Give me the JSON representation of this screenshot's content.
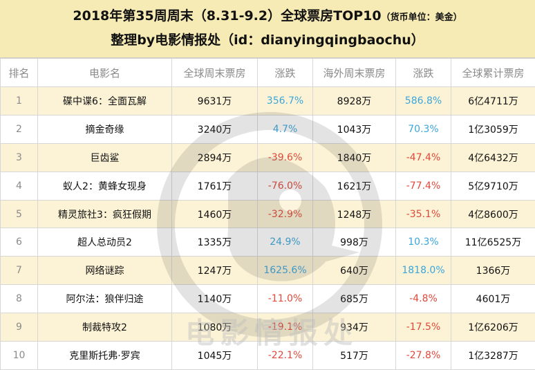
{
  "header": {
    "title": "2018年第35周周末（8.31-9.2）全球票房TOP10",
    "unit": "（货币单位：美金）",
    "subtitle": "整理by电影情报处（id：dianyingqingbaochu）"
  },
  "watermark": {
    "text": "电影情报处"
  },
  "table": {
    "headers": [
      "排名",
      "电影名",
      "全球周末票房",
      "涨跌",
      "海外周末票房",
      "涨跌",
      "全球累计票房"
    ],
    "rows": [
      {
        "rank": "1",
        "name": "碟中谍6：全面瓦解",
        "gross": "9631万",
        "change": "356.7%",
        "change_dir": "up",
        "overseas": "8928万",
        "os_change": "586.8%",
        "os_change_dir": "up",
        "total": "6亿4711万"
      },
      {
        "rank": "2",
        "name": "摘金奇缘",
        "gross": "3240万",
        "change": "4.7%",
        "change_dir": "up",
        "overseas": "1043万",
        "os_change": "70.3%",
        "os_change_dir": "up",
        "total": "1亿3059万"
      },
      {
        "rank": "3",
        "name": "巨齿鲨",
        "gross": "2894万",
        "change": "-39.6%",
        "change_dir": "down",
        "overseas": "1840万",
        "os_change": "-47.4%",
        "os_change_dir": "down",
        "total": "4亿6432万"
      },
      {
        "rank": "4",
        "name": "蚁人2：黄蜂女现身",
        "gross": "1761万",
        "change": "-76.0%",
        "change_dir": "down",
        "overseas": "1621万",
        "os_change": "-77.4%",
        "os_change_dir": "down",
        "total": "5亿9710万"
      },
      {
        "rank": "5",
        "name": "精灵旅社3：疯狂假期",
        "gross": "1460万",
        "change": "-32.9%",
        "change_dir": "down",
        "overseas": "1248万",
        "os_change": "-35.1%",
        "os_change_dir": "down",
        "total": "4亿8600万"
      },
      {
        "rank": "6",
        "name": "超人总动员2",
        "gross": "1335万",
        "change": "24.9%",
        "change_dir": "up",
        "overseas": "998万",
        "os_change": "10.3%",
        "os_change_dir": "up",
        "total": "11亿6525万"
      },
      {
        "rank": "7",
        "name": "网络谜踪",
        "gross": "1247万",
        "change": "1625.6%",
        "change_dir": "up",
        "overseas": "640万",
        "os_change": "1818.0%",
        "os_change_dir": "up",
        "total": "1366万"
      },
      {
        "rank": "8",
        "name": "阿尔法：狼伴归途",
        "gross": "1140万",
        "change": "-11.0%",
        "change_dir": "down",
        "overseas": "685万",
        "os_change": "-4.8%",
        "os_change_dir": "down",
        "total": "4601万"
      },
      {
        "rank": "9",
        "name": "制裁特攻2",
        "gross": "1080万",
        "change": "-19.1%",
        "change_dir": "down",
        "overseas": "934万",
        "os_change": "-17.5%",
        "os_change_dir": "down",
        "total": "1亿6206万"
      },
      {
        "rank": "10",
        "name": "克里斯托弗·罗宾",
        "gross": "1045万",
        "change": "-22.1%",
        "change_dir": "down",
        "overseas": "517万",
        "os_change": "-27.8%",
        "os_change_dir": "down",
        "total": "1亿3287万"
      }
    ]
  }
}
